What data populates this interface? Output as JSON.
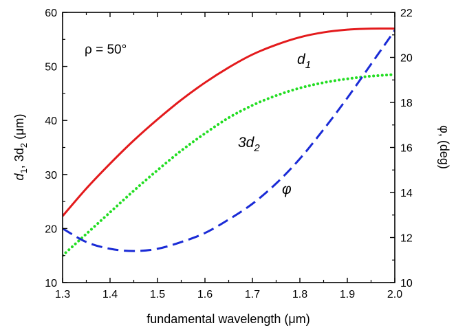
{
  "chart_data": {
    "type": "line",
    "title": "",
    "xlabel": "fundamental wavelength  (μm)",
    "ylabel_left": {
      "base": "d",
      "s1": "1",
      "mid": ", 3d",
      "s2": "2",
      "unit": " (μm)"
    },
    "ylabel_right": "φ, (deg)",
    "xlim": [
      1.3,
      2.0
    ],
    "ylim_left": [
      10,
      60
    ],
    "ylim_right": [
      10,
      22
    ],
    "x_ticks": [
      "1.3",
      "1.4",
      "1.5",
      "1.6",
      "1.7",
      "1.8",
      "1.9",
      "2.0"
    ],
    "y_left_ticks": [
      "10",
      "20",
      "30",
      "40",
      "50",
      "60"
    ],
    "y_right_ticks": [
      "10",
      "12",
      "14",
      "16",
      "18",
      "20",
      "22"
    ],
    "grid": false,
    "x": [
      1.3,
      1.35,
      1.4,
      1.45,
      1.5,
      1.55,
      1.6,
      1.65,
      1.7,
      1.75,
      1.8,
      1.85,
      1.9,
      1.95,
      2.0
    ],
    "series": [
      {
        "id": "d1",
        "axis": "left",
        "color": "#e31a1c",
        "style": "solid",
        "values": [
          22.3,
          27.4,
          32.0,
          36.3,
          40.2,
          43.8,
          47.0,
          49.8,
          52.2,
          54.0,
          55.4,
          56.3,
          56.8,
          57.0,
          57.0
        ]
      },
      {
        "id": "3d2",
        "axis": "left",
        "color": "#22dd22",
        "style": "dotted",
        "values": [
          15.0,
          19.0,
          23.0,
          27.0,
          30.8,
          34.4,
          37.6,
          40.5,
          42.8,
          44.6,
          46.0,
          47.0,
          47.7,
          48.2,
          48.5
        ]
      },
      {
        "id": "phi",
        "axis": "right",
        "color": "#1a2bd6",
        "style": "dashed",
        "values": [
          12.4,
          11.8,
          11.5,
          11.4,
          11.5,
          11.8,
          12.2,
          12.8,
          13.5,
          14.4,
          15.5,
          16.8,
          18.2,
          19.7,
          21.2
        ]
      }
    ],
    "annotations": {
      "rho": "ρ = 50°",
      "d1": {
        "base": "d",
        "sub": "1"
      },
      "3d2": {
        "base": "3d",
        "sub": "2"
      },
      "phi": "φ"
    }
  }
}
